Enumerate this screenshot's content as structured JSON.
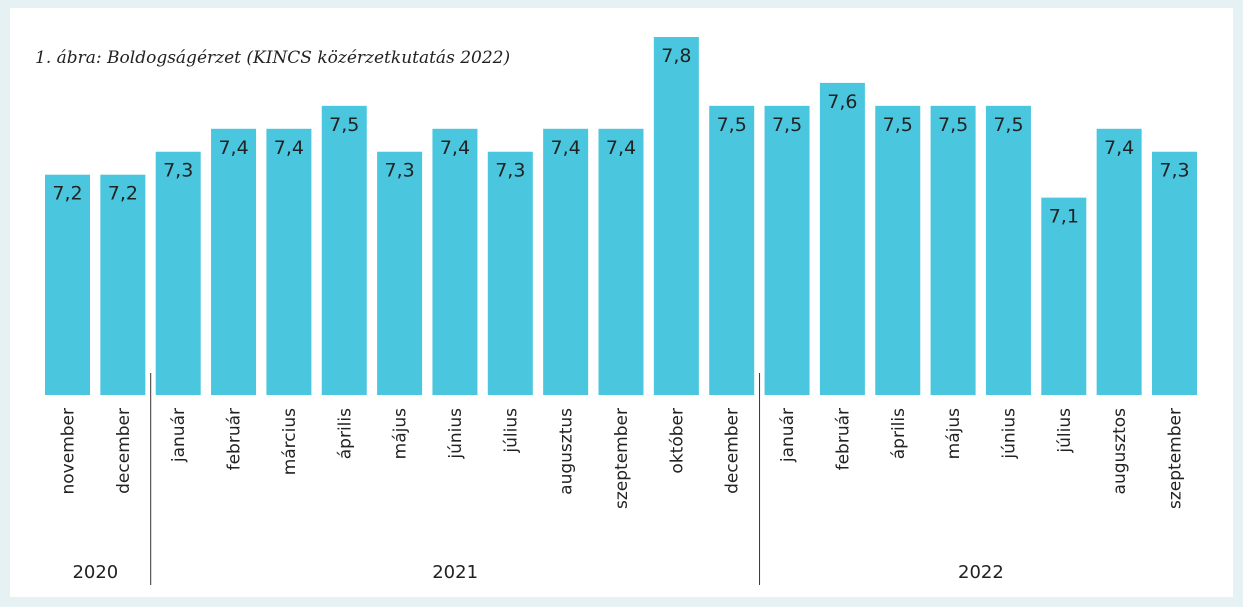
{
  "chart_data": {
    "type": "bar",
    "title": "1. ábra: Boldogságérzet (KINCS közérzetkutatás 2022)",
    "color": "#4bc6df",
    "ylim": [
      6.24,
      7.8
    ],
    "groups": [
      {
        "label": "2020",
        "categories": [
          "november",
          "december"
        ],
        "values": [
          7.2,
          7.2
        ],
        "value_labels": [
          "7,2",
          "7,2"
        ]
      },
      {
        "label": "2021",
        "categories": [
          "január",
          "február",
          "március",
          "április",
          "május",
          "június",
          "július",
          "augusztus",
          "szeptember",
          "október",
          "december"
        ],
        "values": [
          7.3,
          7.4,
          7.4,
          7.5,
          7.3,
          7.4,
          7.3,
          7.4,
          7.4,
          7.8,
          7.5
        ],
        "value_labels": [
          "7,3",
          "7,4",
          "7,4",
          "7,5",
          "7,3",
          "7,4",
          "7,3",
          "7,4",
          "7,4",
          "7,8",
          "7,5"
        ]
      },
      {
        "label": "2022",
        "categories": [
          "január",
          "február",
          "április",
          "május",
          "június",
          "július",
          "augusztos",
          "szeptember"
        ],
        "values": [
          7.5,
          7.6,
          7.5,
          7.5,
          7.5,
          7.1,
          7.4,
          7.3
        ],
        "value_labels": [
          "7,5",
          "7,6",
          "7,5",
          "7,5",
          "7,5",
          "7,1",
          "7,4",
          "7,3"
        ]
      }
    ]
  }
}
